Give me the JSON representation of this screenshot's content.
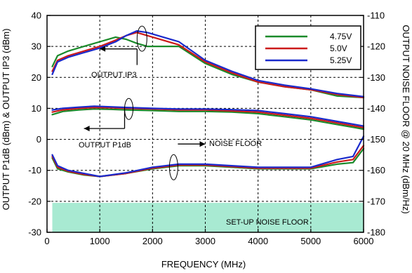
{
  "chart_data": {
    "type": "line",
    "xlabel": "FREQUENCY (MHz)",
    "ylabel_left": "OUTPUT P1dB (dBm) & OUTPUT IP3 (dBm)",
    "ylabel_right": "OUTPUT NOISE FLOOR @ 20 MHz (dBm/Hz)",
    "xlim": [
      0,
      6000
    ],
    "ylim_left": [
      -30,
      40
    ],
    "ylim_right": [
      -180,
      -110
    ],
    "x_ticks": [
      0,
      1000,
      2000,
      3000,
      4000,
      5000,
      6000
    ],
    "y_left_ticks": [
      -30,
      -20,
      -10,
      0,
      10,
      20,
      30,
      40
    ],
    "y_right_ticks": [
      -180,
      -170,
      -160,
      -150,
      -140,
      -130,
      -120,
      -110
    ],
    "grid": true,
    "legend": {
      "placement": "top-right",
      "entries": [
        {
          "label": "4.75V",
          "color": "#1a8a2a"
        },
        {
          "label": "5.0V",
          "color": "#cc1a1a"
        },
        {
          "label": "5.25V",
          "color": "#1a2acc"
        }
      ]
    },
    "annotations": {
      "ip3": "OUTPUT IP3",
      "p1db": "OUTPUT P1dB",
      "noise": "NOISE FLOOR",
      "setup": "SET-UP NOISE FLOOR"
    },
    "setup_noise_floor": {
      "axis": "right",
      "x": [
        100,
        6000
      ],
      "y_top": -170.5,
      "y_bottom": -180,
      "color": "#a8ead2"
    },
    "groups": [
      {
        "name": "OUTPUT IP3",
        "axis": "left",
        "x": [
          100,
          200,
          400,
          700,
          1000,
          1300,
          1500,
          1700,
          1900,
          2100,
          2500,
          3000,
          3500,
          4000,
          4500,
          5000,
          5500,
          6000
        ],
        "series": [
          {
            "name": "4.75V",
            "values": [
              23.5,
              27,
              28.5,
              30,
              31.5,
              33,
              32.3,
              31,
              30,
              30,
              30,
              24.5,
              21,
              18.5,
              17,
              16,
              14,
              13.5
            ]
          },
          {
            "name": "5.0V",
            "values": [
              22,
              25.5,
              27,
              28.5,
              30,
              32,
              33.5,
              34.5,
              33.5,
              32.5,
              30.5,
              25,
              21.5,
              18.5,
              17,
              16,
              14.5,
              13.5
            ]
          },
          {
            "name": "5.25V",
            "values": [
              21,
              25,
              26.5,
              28,
              29.5,
              31.5,
              33.5,
              35,
              34.5,
              33.5,
              31.5,
              25.5,
              22,
              19,
              17.5,
              16.3,
              14.8,
              13.8
            ]
          }
        ]
      },
      {
        "name": "OUTPUT P1dB",
        "axis": "left",
        "x": [
          100,
          300,
          600,
          900,
          1200,
          1500,
          2000,
          2500,
          3000,
          3500,
          4000,
          4500,
          5000,
          5500,
          6000
        ],
        "series": [
          {
            "name": "4.75V",
            "values": [
              8,
              9,
              9.5,
              9.8,
              9.7,
              9.5,
              9.3,
              9,
              9,
              8.8,
              8.3,
              7.3,
              6.3,
              4.8,
              3.3
            ]
          },
          {
            "name": "5.0V",
            "values": [
              8.8,
              9.5,
              10,
              10.3,
              10.2,
              10,
              9.8,
              9.5,
              9.5,
              9.2,
              8.8,
              7.8,
              6.8,
              5.3,
              3.8
            ]
          },
          {
            "name": "5.25V",
            "values": [
              9.5,
              10,
              10.4,
              10.7,
              10.5,
              10.3,
              10,
              9.8,
              9.8,
              9.6,
              9.3,
              8.3,
              7.3,
              5.8,
              4.3
            ]
          }
        ]
      },
      {
        "name": "NOISE FLOOR",
        "axis": "right",
        "x": [
          100,
          200,
          400,
          700,
          1000,
          1500,
          2000,
          2500,
          3000,
          3500,
          4000,
          4500,
          5000,
          5500,
          5800,
          6000
        ],
        "series": [
          {
            "name": "4.75V",
            "values": [
              -156,
              -159.5,
              -160.5,
              -161.5,
              -162,
              -161,
              -159.5,
              -158.5,
              -158.5,
              -159,
              -159.5,
              -159.5,
              -159.5,
              -158,
              -157.5,
              -153
            ]
          },
          {
            "name": "5.0V",
            "values": [
              -155.5,
              -159,
              -160.3,
              -161.3,
              -162,
              -161,
              -159.3,
              -158.3,
              -158.3,
              -158.8,
              -159.3,
              -159.3,
              -159.3,
              -157.3,
              -156.5,
              -152
            ]
          },
          {
            "name": "5.25V",
            "values": [
              -155,
              -158.5,
              -160,
              -161,
              -162,
              -160.8,
              -159,
              -158,
              -158,
              -158.5,
              -159,
              -159,
              -159,
              -156.5,
              -155.5,
              -149
            ]
          }
        ]
      }
    ]
  }
}
